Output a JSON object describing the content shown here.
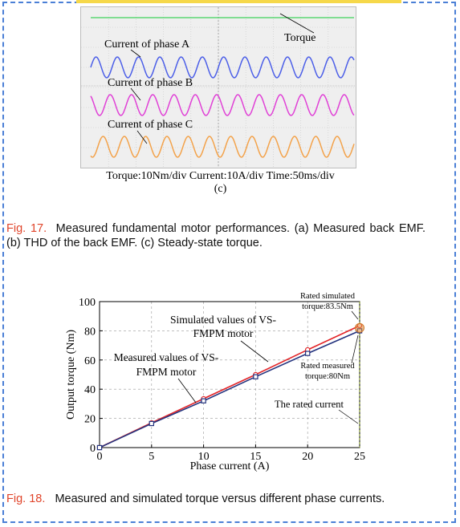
{
  "scope": {
    "labels": {
      "torque": "Torque",
      "phase_a": "Current of phase A",
      "phase_b": "Current of phase B",
      "phase_c": "Current of phase C"
    },
    "scale_text": "Torque:10Nm/div  Current:10A/div  Time:50ms/div",
    "panel_label": "(c)",
    "colors": {
      "torque": "#3fd25a",
      "phase_a": "#4b5ee8",
      "phase_b": "#e040d6",
      "phase_c": "#f3a24a"
    }
  },
  "fig17": {
    "label": "Fig. 17.",
    "text": "Measured fundamental motor performances. (a) Measured back EMF. (b) THD of the back EMF. (c) Steady-state torque."
  },
  "chart_data": {
    "type": "line",
    "xlabel": "Phase current (A)",
    "ylabel": "Output torque (Nm)",
    "xlim": [
      0,
      25
    ],
    "ylim": [
      0,
      100
    ],
    "xticks": [
      0,
      5,
      10,
      15,
      20,
      25
    ],
    "yticks": [
      0,
      20,
      40,
      60,
      80,
      100
    ],
    "grid": true,
    "series": [
      {
        "name": "Simulated values of VS-FMPM motor",
        "color": "#e3262a",
        "x": [
          0,
          5,
          10,
          15,
          20,
          25
        ],
        "y": [
          0,
          17,
          33.5,
          50,
          67,
          83.5
        ]
      },
      {
        "name": "Measured values of VS-FMPM motor",
        "color": "#24337e",
        "x": [
          0,
          5,
          10,
          15,
          20,
          25
        ],
        "y": [
          0,
          16.5,
          32,
          48.5,
          64.5,
          80
        ]
      }
    ],
    "annotations": {
      "simulated_1": "Simulated values of VS-",
      "simulated_2": "FMPM motor",
      "measured_1": "Measured values of VS-",
      "measured_2": "FMPM motor",
      "rated_sim_1": "Rated simulated",
      "rated_sim_2": "torque:83.5Nm",
      "rated_meas_1": "Rated measured",
      "rated_meas_2": "torque:80Nm",
      "rated_current": "The rated current"
    }
  },
  "fig18": {
    "label": "Fig. 18.",
    "text": "Measured and simulated torque versus different phase currents."
  }
}
